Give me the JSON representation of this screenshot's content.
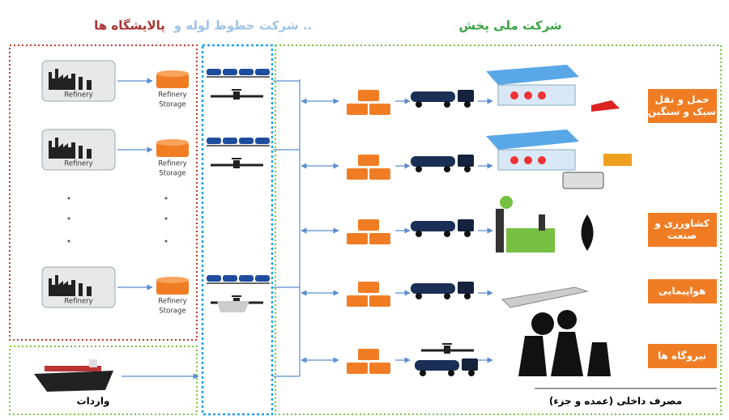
{
  "headers": {
    "refineries": "پالایشگاه ها",
    "pipelines": "شرکت خطوط لوله و ..",
    "distribution": "شرکت ملی پخش"
  },
  "refineries": [
    {
      "label": "Refinery",
      "storage": [
        "Refinery",
        "Storage"
      ]
    },
    {
      "label": "Refinery",
      "storage": [
        "Refinery",
        "Storage"
      ]
    },
    {
      "label": "Refinery",
      "storage": [
        "Refinery",
        "Storage"
      ]
    }
  ],
  "imports": "واردات",
  "sectors": [
    {
      "lines": [
        "حمل و نقل",
        "سبک و سنگین"
      ]
    },
    {
      "lines": [
        "کشاورزی و",
        "صنعت"
      ]
    },
    {
      "lines": [
        "هواپیمایی"
      ]
    },
    {
      "lines": [
        "نیروگاه ها"
      ]
    }
  ],
  "domestic": "مصرف داخلی (عمده و جزء)"
}
